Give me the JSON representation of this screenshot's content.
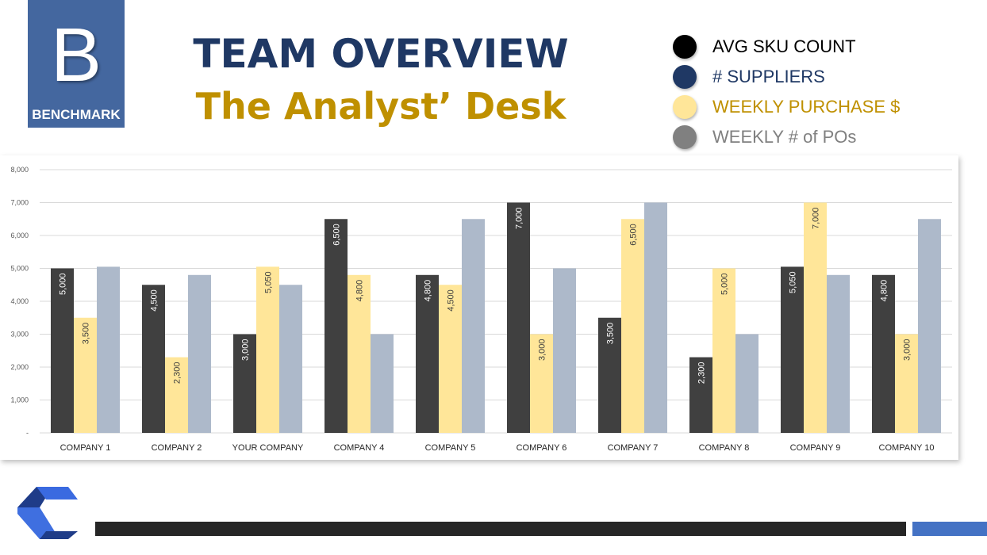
{
  "logo": {
    "letter": "B",
    "label": "BENCHMARK"
  },
  "header": {
    "title": "TEAM OVERVIEW",
    "subtitle": "The Analyst’ Desk"
  },
  "legend": [
    {
      "label": "AVG SKU COUNT",
      "color": "#000000",
      "text_color": "#000000"
    },
    {
      "label": "# SUPPLIERS",
      "color": "#1f3864",
      "text_color": "#1f3864"
    },
    {
      "label": "WEEKLY PURCHASE $",
      "color": "#ffe699",
      "text_color": "#bf9000"
    },
    {
      "label": "WEEKLY # of POs",
      "color": "#808080",
      "text_color": "#808080"
    }
  ],
  "chart_data": {
    "type": "bar",
    "categories": [
      "COMPANY 1",
      "COMPANY 2",
      "YOUR COMPANY",
      "COMPANY 4",
      "COMPANY 5",
      "COMPANY 6",
      "COMPANY 7",
      "COMPANY 8",
      "COMPANY 9",
      "COMPANY 10"
    ],
    "series": [
      {
        "values": [
          5000,
          4500,
          3000,
          6500,
          4800,
          7000,
          3500,
          2300,
          5050,
          4800
        ],
        "color": "#404040",
        "labels": [
          "5,000",
          "4,500",
          "3,000",
          "6,500",
          "4,800",
          "7,000",
          "3,500",
          "2,300",
          "5,050",
          "4,800"
        ],
        "label_color": "#ffffff"
      },
      {
        "values": [
          3500,
          2300,
          5050,
          4800,
          4500,
          3000,
          6500,
          5000,
          7000,
          3000
        ],
        "color": "#ffe699",
        "labels": [
          "3,500",
          "2,300",
          "5,050",
          "4,800",
          "4,500",
          "3,000",
          "6,500",
          "5,000",
          "7,000",
          "3,000"
        ],
        "label_color": "#404040"
      },
      {
        "values": [
          5050,
          4800,
          4500,
          3000,
          6500,
          5000,
          7000,
          3000,
          4800,
          6500
        ],
        "color": "#adb9ca"
      }
    ],
    "yticks": [
      "-",
      "1,000",
      "2,000",
      "3,000",
      "4,000",
      "5,000",
      "6,000",
      "7,000",
      "8,000"
    ],
    "ylim": [
      0,
      8000
    ],
    "grid": true
  }
}
